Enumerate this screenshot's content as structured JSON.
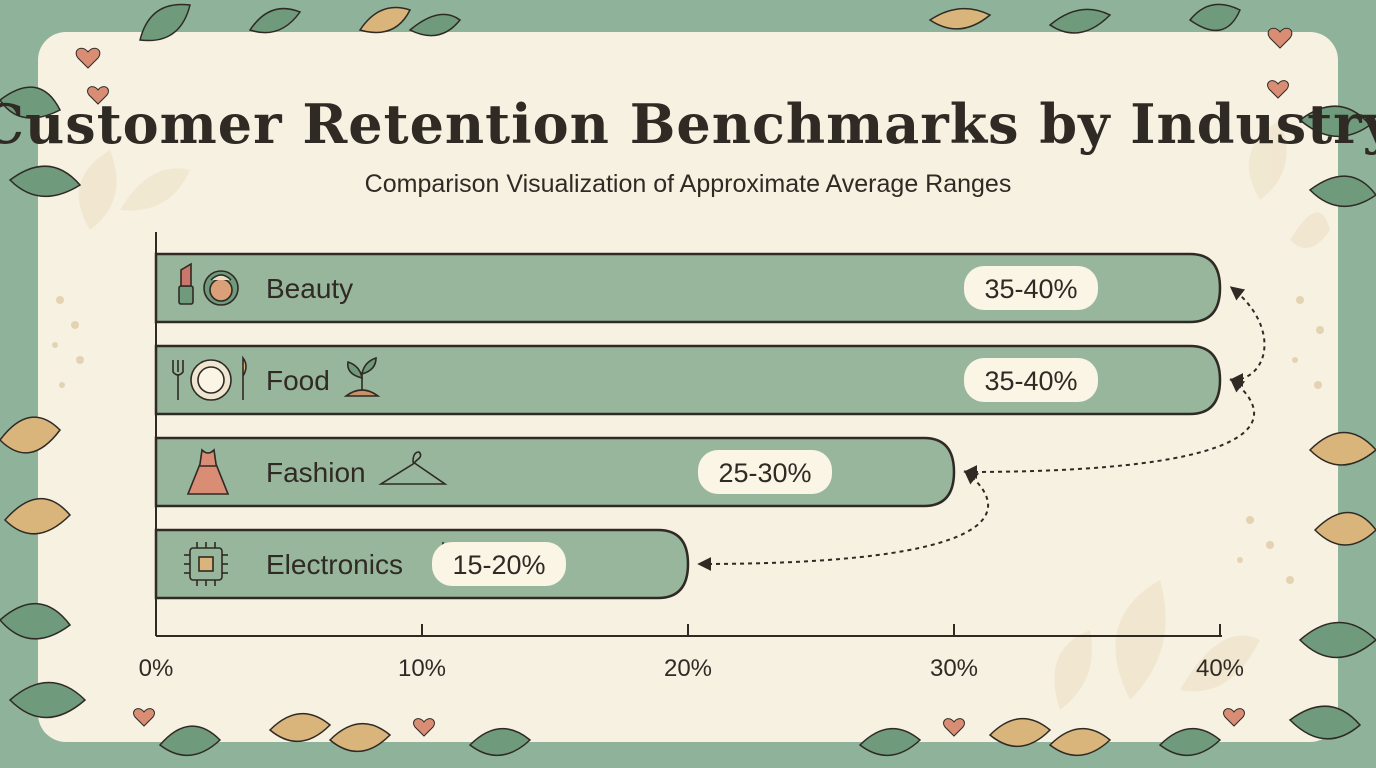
{
  "header": {
    "title": "Customer Retention Benchmarks by Industry",
    "subtitle": "Comparison Visualization of Approximate Average Ranges"
  },
  "colors": {
    "frame_green": "#8fb39a",
    "paper": "#f7f1e2",
    "bar_fill": "#97b69c",
    "outline": "#2f2a24",
    "label_pill": "#fbf5e6",
    "leaf_dark": "#6f9a7c",
    "leaf_tan": "#d9b57c",
    "heart": "#d98d74"
  },
  "chart_data": {
    "type": "bar",
    "orientation": "horizontal",
    "title": "Customer Retention Benchmarks by Industry",
    "subtitle": "Comparison Visualization of Approximate Average Ranges",
    "categories": [
      "Beauty",
      "Food",
      "Fashion",
      "Electronics"
    ],
    "values": [
      40,
      40,
      30,
      20
    ],
    "data_labels": [
      "35-40%",
      "35-40%",
      "25-30%",
      "15-20%"
    ],
    "icons": [
      [
        "lipstick-icon",
        "compact-icon"
      ],
      [
        "fork-icon",
        "plate-icon",
        "knife-icon",
        "sprout-icon"
      ],
      [
        "dress-icon",
        "hanger-icon"
      ],
      [
        "circuit-chip-icon",
        "plug-icon"
      ]
    ],
    "xlim": [
      0,
      40
    ],
    "xticks": [
      0,
      10,
      20,
      30,
      40
    ],
    "xtick_labels": [
      "0%",
      "10%",
      "20%",
      "30%",
      "40%"
    ],
    "grid": false,
    "legend": "none"
  }
}
